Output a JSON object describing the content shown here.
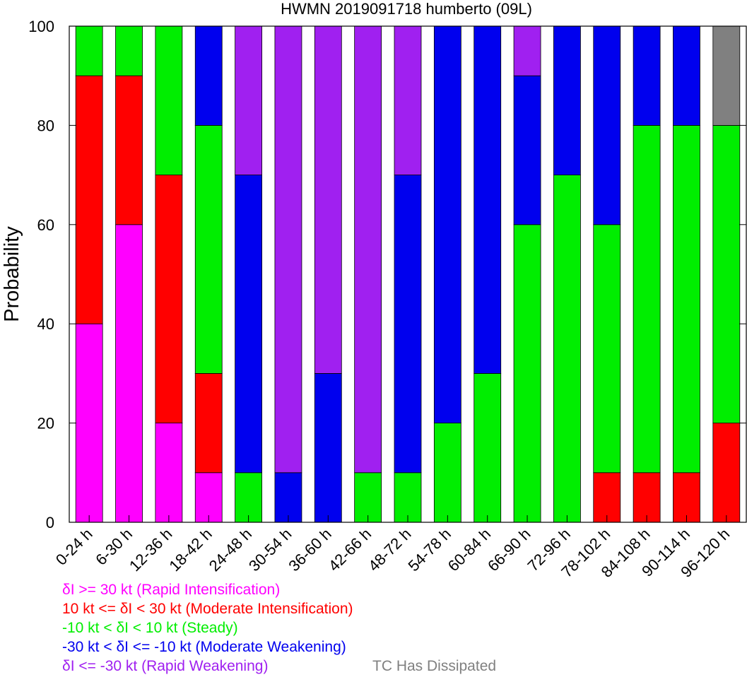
{
  "chart_data": {
    "type": "bar",
    "stacked": true,
    "title": "HWMN 2019091718 humberto (09L)",
    "ylabel": "Probability",
    "xlabel": "",
    "ylim": [
      0,
      100
    ],
    "yticks": [
      0,
      20,
      40,
      60,
      80,
      100
    ],
    "grid": false,
    "categories": [
      "0-24 h",
      "6-30 h",
      "12-36 h",
      "18-42 h",
      "24-48 h",
      "30-54 h",
      "36-60 h",
      "42-66 h",
      "48-72 h",
      "54-78 h",
      "60-84 h",
      "66-90 h",
      "72-96 h",
      "78-102 h",
      "84-108 h",
      "90-114 h",
      "96-120 h"
    ],
    "series": [
      {
        "name": "δI >= 30 kt (Rapid Intensification)",
        "color": "#ff00ff",
        "values": [
          40,
          60,
          20,
          10,
          0,
          0,
          0,
          0,
          0,
          0,
          0,
          0,
          0,
          0,
          0,
          0,
          0
        ]
      },
      {
        "name": "10 kt <= δI < 30 kt (Moderate Intensification)",
        "color": "#ff0000",
        "values": [
          50,
          30,
          50,
          20,
          0,
          0,
          0,
          0,
          0,
          0,
          0,
          0,
          0,
          10,
          10,
          10,
          20
        ]
      },
      {
        "name": "-10 kt < δI < 10 kt (Steady)",
        "color": "#00ee00",
        "values": [
          10,
          10,
          30,
          50,
          10,
          0,
          0,
          10,
          10,
          20,
          30,
          60,
          70,
          50,
          70,
          70,
          60
        ]
      },
      {
        "name": "-30 kt < δI <= -10 kt (Moderate Weakening)",
        "color": "#0000ee",
        "values": [
          0,
          0,
          0,
          20,
          60,
          10,
          30,
          0,
          60,
          80,
          70,
          30,
          30,
          40,
          20,
          20,
          0
        ]
      },
      {
        "name": "δI <= -30 kt (Rapid Weakening)",
        "color": "#a020f0",
        "values": [
          0,
          0,
          0,
          0,
          30,
          90,
          70,
          90,
          30,
          0,
          0,
          10,
          0,
          0,
          0,
          0,
          0
        ]
      },
      {
        "name": "TC Has Dissipated",
        "color": "#808080",
        "values": [
          0,
          0,
          0,
          0,
          0,
          0,
          0,
          0,
          0,
          0,
          0,
          0,
          0,
          0,
          0,
          0,
          20
        ]
      }
    ],
    "legend_position": "bottom-left"
  }
}
